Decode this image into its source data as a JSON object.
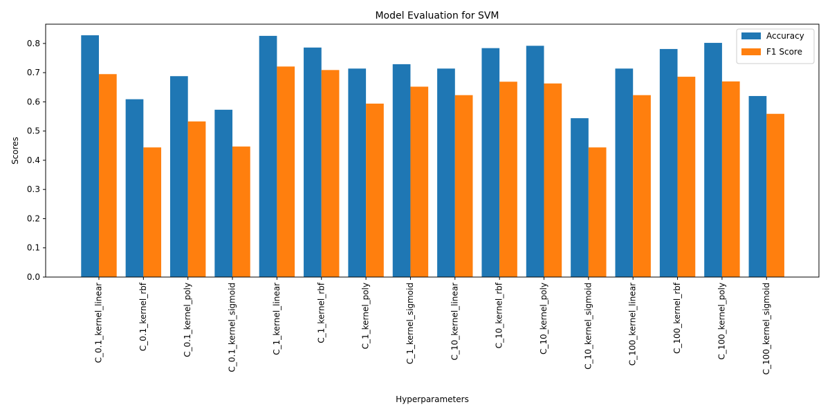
{
  "chart_data": {
    "type": "bar",
    "title": "Model Evaluation for SVM",
    "xlabel": "Hyperparameters",
    "ylabel": "Scores",
    "ylim": [
      0,
      0.866
    ],
    "yticks": [
      "0.0",
      "0.1",
      "0.2",
      "0.3",
      "0.4",
      "0.5",
      "0.6",
      "0.7",
      "0.8"
    ],
    "grid": false,
    "legend_position": "top-right",
    "categories": [
      "C_0.1_kernel_linear",
      "C_0.1_kernel_rbf",
      "C_0.1_kernel_poly",
      "C_0.1_kernel_sigmoid",
      "C_1_kernel_linear",
      "C_1_kernel_rbf",
      "C_1_kernel_poly",
      "C_1_kernel_sigmoid",
      "C_10_kernel_linear",
      "C_10_kernel_rbf",
      "C_10_kernel_poly",
      "C_10_kernel_sigmoid",
      "C_100_kernel_linear",
      "C_100_kernel_rbf",
      "C_100_kernel_poly",
      "C_100_kernel_sigmoid"
    ],
    "series": [
      {
        "name": "Accuracy",
        "color": "#1f77b4",
        "values": [
          0.828,
          0.609,
          0.688,
          0.573,
          0.826,
          0.786,
          0.714,
          0.729,
          0.714,
          0.784,
          0.792,
          0.544,
          0.714,
          0.781,
          0.802,
          0.62
        ]
      },
      {
        "name": "F1 Score",
        "color": "#ff7f0e",
        "values": [
          0.695,
          0.444,
          0.533,
          0.447,
          0.721,
          0.709,
          0.594,
          0.652,
          0.623,
          0.669,
          0.663,
          0.444,
          0.623,
          0.686,
          0.67,
          0.559
        ]
      }
    ]
  }
}
